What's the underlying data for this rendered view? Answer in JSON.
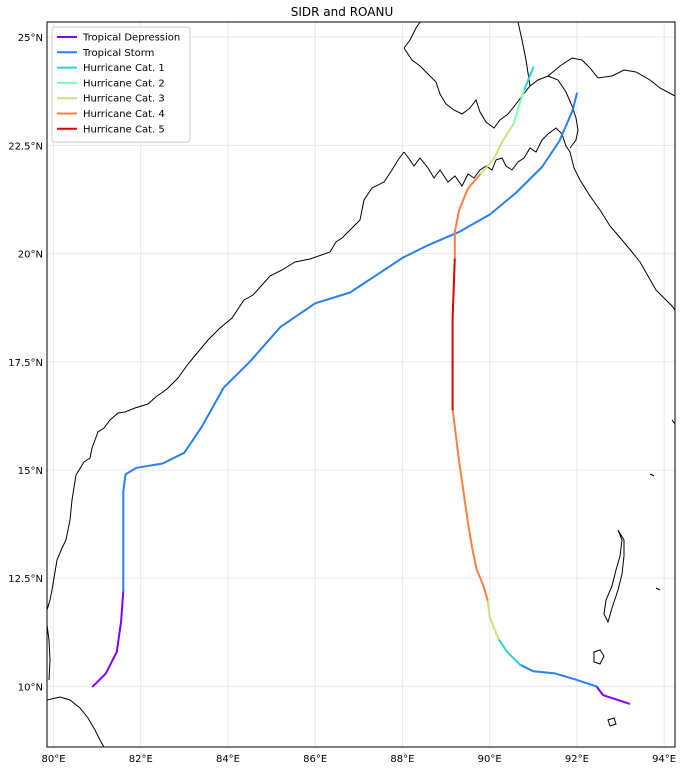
{
  "title": "SIDR and ROANU",
  "map": {
    "projection": "PlateCarree",
    "lon_range": [
      79.85,
      94.25
    ],
    "lat_range": [
      8.6,
      25.35
    ],
    "lon_ticks": [
      {
        "value": 80,
        "label": "80°E"
      },
      {
        "value": 82,
        "label": "82°E"
      },
      {
        "value": 84,
        "label": "84°E"
      },
      {
        "value": 86,
        "label": "86°E"
      },
      {
        "value": 88,
        "label": "88°E"
      },
      {
        "value": 90,
        "label": "90°E"
      },
      {
        "value": 92,
        "label": "92°E"
      },
      {
        "value": 94,
        "label": "94°E"
      }
    ],
    "lat_ticks": [
      {
        "value": 10,
        "label": "10°N"
      },
      {
        "value": 12.5,
        "label": "12.5°N"
      },
      {
        "value": 15,
        "label": "15°N"
      },
      {
        "value": 17.5,
        "label": "17.5°N"
      },
      {
        "value": 20,
        "label": "20°N"
      },
      {
        "value": 22.5,
        "label": "22.5°N"
      },
      {
        "value": 25,
        "label": "25°N"
      }
    ],
    "grid": true
  },
  "legend": {
    "placement": "top-left",
    "items": [
      {
        "label": "Tropical Depression",
        "color": "#7f00ff"
      },
      {
        "label": "Tropical Storm",
        "color": "#2a7fef"
      },
      {
        "label": "Hurricane Cat. 1",
        "color": "#2ed3d3"
      },
      {
        "label": "Hurricane Cat. 2",
        "color": "#80ffb4"
      },
      {
        "label": "Hurricane Cat. 3",
        "color": "#d4dd80"
      },
      {
        "label": "Hurricane Cat. 4",
        "color": "#ff7f40"
      },
      {
        "label": "Hurricane Cat. 5",
        "color": "#e00000"
      }
    ]
  },
  "tracks": [
    {
      "segments": [
        {
          "category": 0,
          "points": [
            [
              80.9,
              10.0
            ],
            [
              81.2,
              10.3
            ],
            [
              81.45,
              10.8
            ],
            [
              81.55,
              11.5
            ],
            [
              81.6,
              12.2
            ]
          ]
        },
        {
          "category": 1,
          "points": [
            [
              81.6,
              12.2
            ],
            [
              81.6,
              13.5
            ],
            [
              81.6,
              14.5
            ],
            [
              81.65,
              14.9
            ],
            [
              81.9,
              15.05
            ],
            [
              82.5,
              15.15
            ],
            [
              83.0,
              15.4
            ],
            [
              83.4,
              16.0
            ],
            [
              83.9,
              16.9
            ],
            [
              84.5,
              17.5
            ],
            [
              85.2,
              18.3
            ],
            [
              86.0,
              18.85
            ],
            [
              86.8,
              19.1
            ],
            [
              87.4,
              19.5
            ],
            [
              88.0,
              19.9
            ],
            [
              88.6,
              20.2
            ],
            [
              89.3,
              20.5
            ],
            [
              90.0,
              20.9
            ],
            [
              90.6,
              21.4
            ],
            [
              91.2,
              22.0
            ],
            [
              91.6,
              22.6
            ],
            [
              91.9,
              23.3
            ],
            [
              92.0,
              23.7
            ]
          ]
        }
      ]
    },
    {
      "segments": [
        {
          "category": 0,
          "points": [
            [
              93.2,
              9.6
            ],
            [
              92.9,
              9.7
            ],
            [
              92.6,
              9.8
            ],
            [
              92.45,
              10.0
            ]
          ]
        },
        {
          "category": 1,
          "points": [
            [
              92.45,
              10.0
            ],
            [
              92.0,
              10.15
            ],
            [
              91.5,
              10.3
            ],
            [
              91.0,
              10.35
            ],
            [
              90.7,
              10.5
            ]
          ]
        },
        {
          "category": 2,
          "points": [
            [
              90.7,
              10.5
            ],
            [
              90.4,
              10.8
            ],
            [
              90.2,
              11.1
            ]
          ]
        },
        {
          "category": 4,
          "points": [
            [
              90.2,
              11.1
            ],
            [
              90.0,
              11.6
            ],
            [
              89.95,
              12.0
            ]
          ]
        },
        {
          "category": 5,
          "points": [
            [
              89.95,
              12.0
            ],
            [
              89.85,
              12.35
            ],
            [
              89.7,
              12.7
            ],
            [
              89.6,
              13.2
            ],
            [
              89.5,
              13.8
            ],
            [
              89.4,
              14.5
            ],
            [
              89.3,
              15.2
            ],
            [
              89.2,
              16.0
            ],
            [
              89.15,
              16.4
            ]
          ]
        },
        {
          "category": 6,
          "points": [
            [
              89.15,
              16.4
            ],
            [
              89.15,
              17.5
            ],
            [
              89.15,
              18.5
            ],
            [
              89.2,
              19.9
            ]
          ]
        },
        {
          "category": 5,
          "points": [
            [
              89.2,
              19.9
            ],
            [
              89.2,
              20.5
            ],
            [
              89.3,
              21.0
            ],
            [
              89.5,
              21.5
            ],
            [
              89.8,
              21.85
            ]
          ]
        },
        {
          "category": 4,
          "points": [
            [
              89.8,
              21.85
            ],
            [
              90.1,
              22.2
            ],
            [
              90.3,
              22.6
            ],
            [
              90.55,
              23.0
            ]
          ]
        },
        {
          "category": 3,
          "points": [
            [
              90.55,
              23.0
            ],
            [
              90.7,
              23.5
            ],
            [
              90.8,
              23.8
            ]
          ]
        },
        {
          "category": 2,
          "points": [
            [
              90.8,
              23.8
            ],
            [
              91.0,
              24.3
            ]
          ]
        }
      ]
    }
  ]
}
